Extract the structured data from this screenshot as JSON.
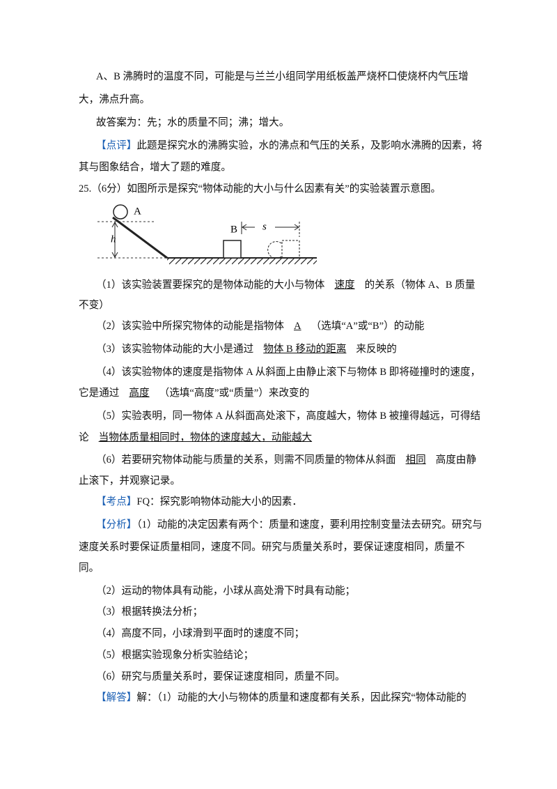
{
  "lines": [
    [
      "A、B 沸腾时的温度不同，可能是与兰兰小组同学用纸板盖严烧杯口使烧杯内气压增"
    ],
    [
      "大，沸点升高。"
    ],
    [
      "故答案为：先；水的质量不同；沸；增大。"
    ],
    [
      "【点评】",
      "此题是探究水的沸腾实验，水的沸点和气压的关系，及影响水沸腾的因素，将"
    ],
    [
      "其与图象结合，增大了题的难度。"
    ],
    [
      "25.（6分）如图所示是探究“物体动能的大小与什么因素有关”的实验装置示意图。"
    ],
    [
      "（1）该实验装置要探究的是物体动能的大小与物体",
      "速度",
      "的关系（物体 A、B 质量"
    ],
    [
      "不变）"
    ],
    [
      "（2）该实验中所探究物体的动能是指物体",
      "A",
      "（选填“A”或“B”）的动能"
    ],
    [
      "（3）该实验物体动能的大小是通过",
      "物体 B 移动的距离",
      "来反映的"
    ],
    [
      "（4）该实验物体的速度是指物体 A 从斜面上由静止滚下与物体 B 即将碰撞时的速度，"
    ],
    [
      "它是通过",
      "高度",
      "（选填“高度”或“质量”）来改变的"
    ],
    [
      "（5）实验表明，同一物体 A 从斜面高处滚下，高度越大，物体 B 被撞得越远，可得结"
    ],
    [
      "论",
      "当物体质量相同时，物体的速度越大，动能越大"
    ],
    [
      "（6）若要研究物体动能与质量的关系，则需不同质量的物体从斜面",
      "相同",
      "高度由静"
    ],
    [
      "止滚下，并观察记录。"
    ],
    [
      "【考点】",
      "FQ：探究影响物体动能大小的因素．"
    ],
    [
      "【分析】",
      "（1）动能的决定因素有两个：质量和速度，要利用控制变量法去研究。研究与"
    ],
    [
      "速度关系时要保证质量相同，速度不同。研究与质量关系时，要保证速度相同，质量不"
    ],
    [
      "同。"
    ],
    [
      "（2）运动的物体具有动能，小球从高处滑下时具有动能；"
    ],
    [
      "（3）根据转换法分析；"
    ],
    [
      "（4）高度不同，小球滑到平面时的速度不同；"
    ],
    [
      "（5）根据实验现象分析实验结论；"
    ],
    [
      "（6）研究与质量关系时，要保证速度相同，质量不同。"
    ],
    [
      "【解答】",
      "解：（1）动能的大小与物体的质量和速度都有关系，因此探究“物体动能的"
    ]
  ],
  "figure": {
    "labels": [
      "A",
      "B",
      "h",
      "s"
    ]
  }
}
